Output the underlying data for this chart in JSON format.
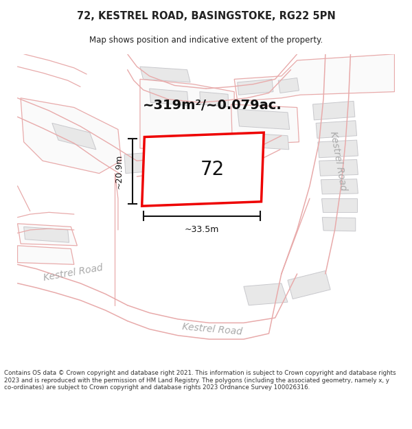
{
  "title_line1": "72, KESTREL ROAD, BASINGSTOKE, RG22 5PN",
  "title_line2": "Map shows position and indicative extent of the property.",
  "area_text": "~319m²/~0.079ac.",
  "property_number": "72",
  "dim_width": "~33.5m",
  "dim_height": "~20.9m",
  "footer_text": "Contains OS data © Crown copyright and database right 2021. This information is subject to Crown copyright and database rights 2023 and is reproduced with the permission of HM Land Registry. The polygons (including the associated geometry, namely x, y co-ordinates) are subject to Crown copyright and database rights 2023 Ordnance Survey 100026316.",
  "map_bg": "#ffffff",
  "building_fill": "#e8e8e8",
  "building_edge": "#c8c8cc",
  "plot_fill": "#ffffff",
  "plot_edge": "#ee0000",
  "road_line_color": "#e8aaaa",
  "road_label_color": "#aaaaaa",
  "text_color": "#222222",
  "area_text_color": "#111111",
  "footer_color": "#333333",
  "title_color": "#222222",
  "ann_color": "#111111"
}
